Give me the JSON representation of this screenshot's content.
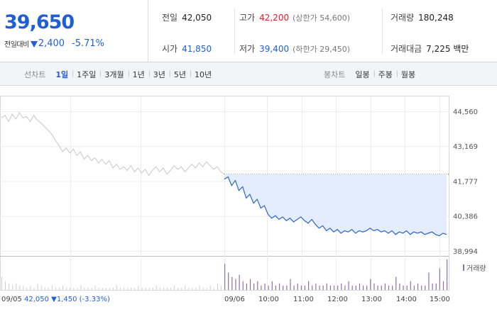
{
  "summary": {
    "current_price": "39,650",
    "change_label": "전일대비",
    "change_amount": "2,400",
    "change_percent": "-5.71%",
    "direction_icon": "down-triangle-icon",
    "colors": {
      "down": "#1f5fd6",
      "up": "#e02020"
    }
  },
  "stats": {
    "prev_close": {
      "label": "전일",
      "value": "42,050"
    },
    "high": {
      "label": "고가",
      "value": "42,200",
      "sub": "(상한가 54,600)"
    },
    "volume": {
      "label": "거래량",
      "value": "180,248"
    },
    "open": {
      "label": "시가",
      "value": "41,850"
    },
    "low": {
      "label": "저가",
      "value": "39,400",
      "sub": "(하한가 29,450)"
    },
    "trade_value": {
      "label": "거래대금",
      "value": "7,225 백만"
    }
  },
  "line_chart_tabs": {
    "title": "선차트",
    "items": [
      "1일",
      "1주일",
      "3개월",
      "1년",
      "3년",
      "5년",
      "10년"
    ],
    "active": "1일"
  },
  "candle_chart_tabs": {
    "title": "봉차트",
    "items": [
      "일봉",
      "주봉",
      "월봉"
    ]
  },
  "chart_data": {
    "type": "line",
    "y_ticks": [
      44560,
      43169,
      41777,
      40386,
      38994
    ],
    "y_tick_labels": [
      "44,560",
      "43,169",
      "41,777",
      "40,386",
      "38,994"
    ],
    "ylim": [
      38994,
      44560
    ],
    "prev_close_reference": 42050,
    "x_labels": [
      "09/05",
      "09/06",
      "10:00",
      "11:00",
      "12:00",
      "13:00",
      "14:00",
      "15:00"
    ],
    "prev_day_label": "09/05",
    "prev_day_close": "42,050",
    "prev_day_change": "1,450",
    "prev_day_pct": "(-3.33%)",
    "volume_legend": "거래량",
    "series": [
      {
        "values_prev_day": [
          44300,
          44400,
          44150,
          44450,
          44250,
          44500,
          44300,
          44350,
          44150,
          44400,
          44200,
          44100,
          43950,
          43800,
          43650,
          43400,
          43200,
          42950,
          43100,
          42900,
          43050,
          42800,
          42950,
          42650,
          42800,
          42600,
          42700,
          42500,
          42650,
          42450,
          42600,
          42300,
          42450,
          42250,
          42350,
          42200,
          42400,
          42150,
          42300,
          42100,
          42250,
          42000,
          42200,
          42350,
          42150,
          42300,
          42050,
          42200,
          42400,
          42250,
          42350,
          42150,
          42300,
          42450,
          42300,
          42500,
          42350,
          42550,
          42400,
          42250,
          42350,
          42150,
          42050
        ],
        "values_today": [
          41850,
          41950,
          41600,
          41800,
          41400,
          41550,
          41100,
          41250,
          40900,
          41050,
          40700,
          40800,
          40450,
          40300,
          40400,
          40250,
          40350,
          40200,
          40300,
          40150,
          40250,
          40350,
          40200,
          40100,
          40250,
          40050,
          39900,
          40000,
          39800,
          39900,
          39750,
          39850,
          39700,
          39800,
          39750,
          39850,
          39700,
          39800,
          39750,
          39800,
          39900,
          39800,
          39850,
          39750,
          39800,
          39700,
          39800,
          39650,
          39750,
          39700,
          39800,
          39650,
          39750,
          39700,
          39750,
          39650,
          39700,
          39750,
          39650,
          39600,
          39700,
          39650
        ]
      }
    ],
    "volume_prev_day": [
      6,
      4,
      3,
      2,
      3,
      2,
      2,
      1,
      2,
      1,
      3,
      2,
      1,
      1,
      2,
      1,
      1,
      2,
      1,
      1,
      1,
      1,
      2,
      1,
      1,
      1,
      2,
      1,
      1,
      1,
      1,
      1,
      2,
      1,
      1,
      1,
      1,
      1,
      2,
      1,
      1,
      1,
      1,
      2,
      1,
      1,
      1,
      1,
      2,
      1,
      1,
      2,
      1,
      1,
      1,
      2,
      1,
      1,
      2,
      1,
      3,
      2,
      4
    ],
    "volume_today": [
      12,
      8,
      6,
      5,
      7,
      4,
      3,
      5,
      3,
      4,
      2,
      3,
      2,
      4,
      2,
      3,
      2,
      2,
      5,
      2,
      3,
      2,
      2,
      4,
      2,
      3,
      2,
      2,
      3,
      2,
      2,
      2,
      3,
      2,
      4,
      2,
      2,
      3,
      2,
      2,
      5,
      3,
      2,
      2,
      3,
      2,
      2,
      6,
      3,
      2,
      2,
      4,
      2,
      3,
      2,
      2,
      8,
      3,
      3,
      10,
      4,
      14
    ]
  }
}
